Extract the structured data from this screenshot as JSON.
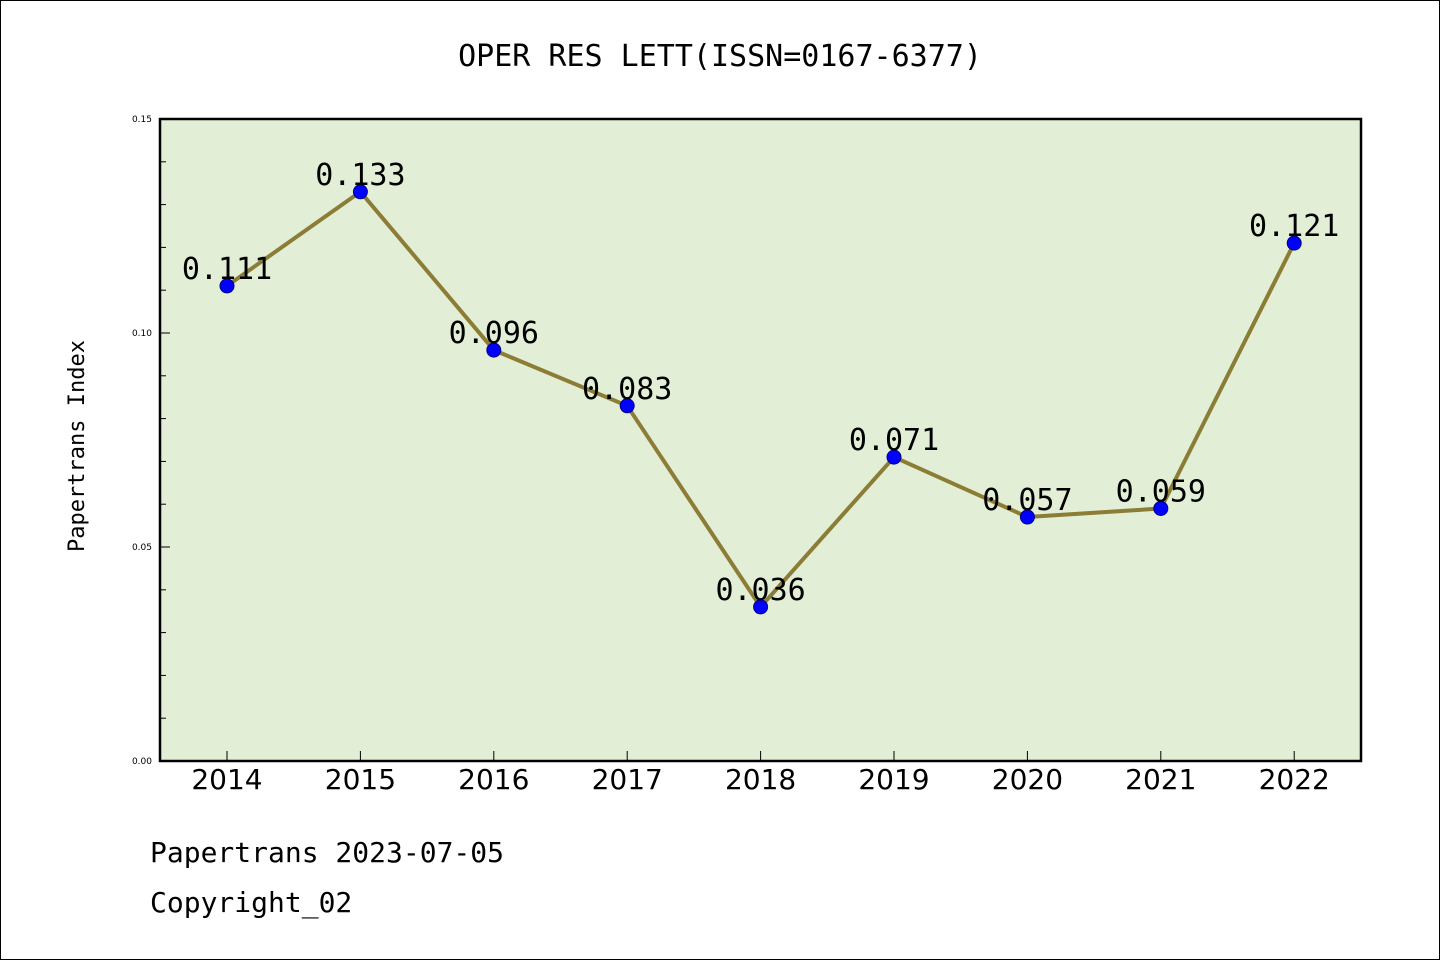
{
  "colors": {
    "plot_background": "#e2efd6",
    "line": "#8b7d35",
    "marker": "#0000ff",
    "marker_edge": "#000080",
    "axes": "#000000"
  },
  "chart_data": {
    "type": "line",
    "title": "OPER RES LETT(ISSN=0167-6377)",
    "xlabel": "",
    "ylabel": "Papertrans Index",
    "categories": [
      "2014",
      "2015",
      "2016",
      "2017",
      "2018",
      "2019",
      "2020",
      "2021",
      "2022"
    ],
    "values": [
      0.111,
      0.133,
      0.096,
      0.083,
      0.036,
      0.071,
      0.057,
      0.059,
      0.121
    ],
    "data_labels": [
      "0.111",
      "0.133",
      "0.096",
      "0.083",
      "0.036",
      "0.071",
      "0.057",
      "0.059",
      "0.121"
    ],
    "ylim": [
      0,
      0.15
    ],
    "yticks": [
      "0.00",
      "0.05",
      "0.10",
      "0.15"
    ],
    "grid": false,
    "legend": "none"
  },
  "footer": {
    "date_line": "Papertrans 2023-07-05",
    "copyright": "Copyright_02"
  }
}
